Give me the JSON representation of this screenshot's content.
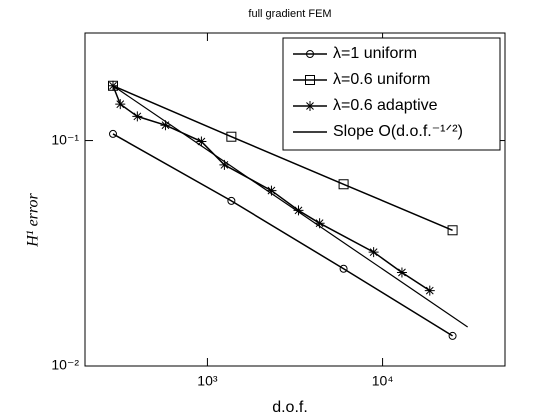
{
  "chart_data": {
    "type": "line",
    "title": "full gradient FEM",
    "xlabel": "d.o.f.",
    "ylabel": "H¹ error",
    "xscale": "log",
    "yscale": "log",
    "xlim": [
      200,
      50000
    ],
    "ylim": [
      0.01,
      0.3
    ],
    "xticks": [
      {
        "value": 1000,
        "label": "10³"
      },
      {
        "value": 10000,
        "label": "10⁴"
      }
    ],
    "yticks": [
      {
        "value": 0.01,
        "label": "10⁻²"
      },
      {
        "value": 0.1,
        "label": "10⁻¹"
      }
    ],
    "legend": "upper right",
    "series": [
      {
        "name": "λ=1 uniform",
        "color": "#000000",
        "marker": "circle",
        "x": [
          289,
          1370,
          5990,
          25100
        ],
        "values": [
          0.107,
          0.054,
          0.027,
          0.0136
        ]
      },
      {
        "name": "λ=0.6 uniform",
        "color": "#000000",
        "marker": "square",
        "x": [
          289,
          1370,
          5990,
          25100
        ],
        "values": [
          0.175,
          0.104,
          0.064,
          0.04
        ]
      },
      {
        "name": "λ=0.6 adaptive",
        "color": "#000000",
        "marker": "star",
        "x": [
          289,
          318,
          398,
          576,
          924,
          1250,
          2320,
          3310,
          4370,
          8890,
          12900,
          18600
        ],
        "values": [
          0.175,
          0.145,
          0.128,
          0.117,
          0.099,
          0.078,
          0.06,
          0.049,
          0.043,
          0.032,
          0.026,
          0.0216
        ]
      },
      {
        "name": "Slope O(d.o.f.⁻¹ᐟ²)",
        "color": "#000000",
        "marker": "none",
        "x": [
          289,
          30600
        ],
        "values": [
          0.175,
          0.0149
        ]
      }
    ]
  }
}
